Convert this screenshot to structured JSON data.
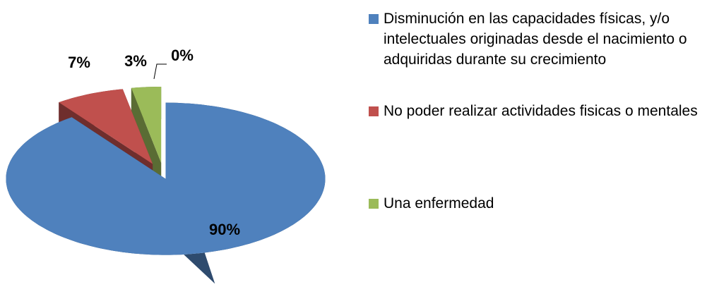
{
  "chart_data": {
    "type": "pie",
    "categories": [
      "Disminución en las capacidades físicas, y/o intelectuales originadas desde el nacimiento o adquiridas durante su crecimiento",
      "No poder realizar actividades fisicas o mentales",
      "Una enfermedad",
      null
    ],
    "values": [
      90,
      7,
      3,
      0
    ],
    "value_labels": [
      "90%",
      "7%",
      "3%",
      "0%"
    ],
    "colors": [
      "#4f81bd",
      "#c0504d",
      "#9bbb59",
      "#8064a2"
    ],
    "legend": "right"
  }
}
